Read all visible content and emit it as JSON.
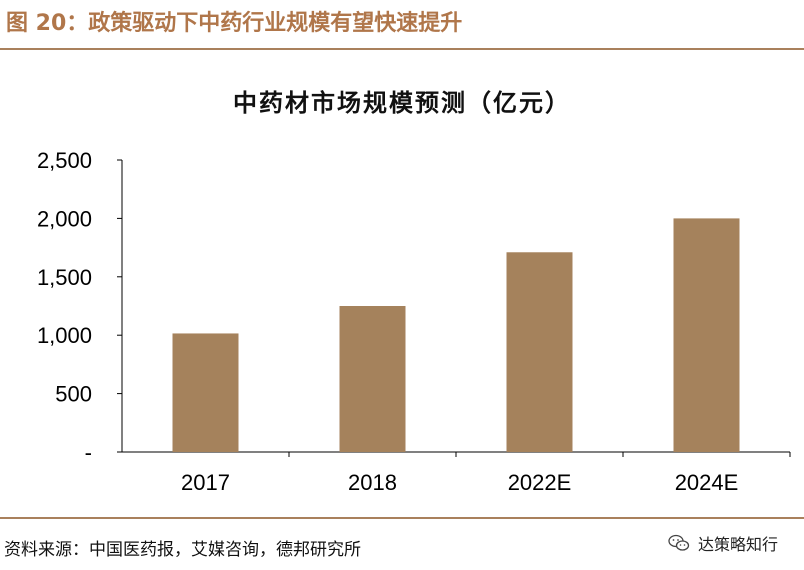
{
  "figure": {
    "label": "图 20：政策驱动下中药行业规模有望快速提升",
    "source": "资料来源：中国医药报，艾媒咨询，德邦研究所",
    "watermark": "达策略知行",
    "watermark_icon": "wechat-icon"
  },
  "colors": {
    "header": "#b0764a",
    "rule": "#a9805c",
    "bar": "#a5825c"
  },
  "chart_data": {
    "type": "bar",
    "title": "中药材市场规模预测（亿元）",
    "categories": [
      "2017",
      "2018",
      "2022E",
      "2024E"
    ],
    "values": [
      1015,
      1250,
      1710,
      2000
    ],
    "ylim": [
      0,
      2500
    ],
    "yticks": [
      "-",
      "500",
      "1,000",
      "1,500",
      "2,000",
      "2,500"
    ],
    "ytick_values": [
      0,
      500,
      1000,
      1500,
      2000,
      2500
    ],
    "grid": false,
    "legend": "none"
  }
}
